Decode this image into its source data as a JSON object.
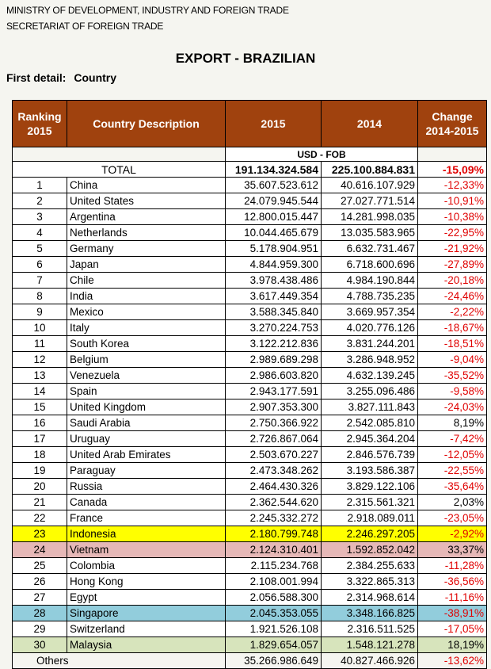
{
  "header": {
    "line1": "MINISTRY OF DEVELOPMENT, INDUSTRY AND FOREIGN TRADE",
    "line2": "SECRETARIAT OF FOREIGN TRADE",
    "title": "EXPORT - BRAZILIAN",
    "detail_label": "First detail:",
    "detail_value": "Country"
  },
  "colors": {
    "header_bg": "#a0420e",
    "negative": "#e00000",
    "highlight_yellow": "#ffff00",
    "highlight_pink": "#e6b8b7",
    "highlight_blue": "#92cddc",
    "highlight_green": "#d7e4bc"
  },
  "table": {
    "columns": {
      "ranking_line1": "Ranking",
      "ranking_line2": "2015",
      "country": "Country Description",
      "y2015": "2015",
      "y2014": "2014",
      "change_line1": "Change",
      "change_line2": "2014-2015"
    },
    "unit": "USD - FOB",
    "total": {
      "label": "TOTAL",
      "v2015": "191.134.324.584",
      "v2014": "225.100.884.831",
      "change": "-15,09%"
    },
    "rows": [
      {
        "rank": "1",
        "country": "China",
        "v2015": "35.607.523.612",
        "v2014": "40.616.107.929",
        "change": "-12,33%",
        "highlight": ""
      },
      {
        "rank": "2",
        "country": "United States",
        "v2015": "24.079.945.544",
        "v2014": "27.027.771.514",
        "change": "-10,91%",
        "highlight": ""
      },
      {
        "rank": "3",
        "country": "Argentina",
        "v2015": "12.800.015.447",
        "v2014": "14.281.998.035",
        "change": "-10,38%",
        "highlight": ""
      },
      {
        "rank": "4",
        "country": "Netherlands",
        "v2015": "10.044.465.679",
        "v2014": "13.035.583.965",
        "change": "-22,95%",
        "highlight": ""
      },
      {
        "rank": "5",
        "country": "Germany",
        "v2015": "5.178.904.951",
        "v2014": "6.632.731.467",
        "change": "-21,92%",
        "highlight": ""
      },
      {
        "rank": "6",
        "country": "Japan",
        "v2015": "4.844.959.300",
        "v2014": "6.718.600.696",
        "change": "-27,89%",
        "highlight": ""
      },
      {
        "rank": "7",
        "country": "Chile",
        "v2015": "3.978.438.486",
        "v2014": "4.984.190.844",
        "change": "-20,18%",
        "highlight": ""
      },
      {
        "rank": "8",
        "country": "India",
        "v2015": "3.617.449.354",
        "v2014": "4.788.735.235",
        "change": "-24,46%",
        "highlight": ""
      },
      {
        "rank": "9",
        "country": "Mexico",
        "v2015": "3.588.345.840",
        "v2014": "3.669.957.354",
        "change": "-2,22%",
        "highlight": ""
      },
      {
        "rank": "10",
        "country": "Italy",
        "v2015": "3.270.224.753",
        "v2014": "4.020.776.126",
        "change": "-18,67%",
        "highlight": ""
      },
      {
        "rank": "11",
        "country": "South Korea",
        "v2015": "3.122.212.836",
        "v2014": "3.831.244.201",
        "change": "-18,51%",
        "highlight": ""
      },
      {
        "rank": "12",
        "country": "Belgium",
        "v2015": "2.989.689.298",
        "v2014": "3.286.948.952",
        "change": "-9,04%",
        "highlight": ""
      },
      {
        "rank": "13",
        "country": "Venezuela",
        "v2015": "2.986.603.820",
        "v2014": "4.632.139.245",
        "change": "-35,52%",
        "highlight": ""
      },
      {
        "rank": "14",
        "country": "Spain",
        "v2015": "2.943.177.591",
        "v2014": "3.255.096.486",
        "change": "-9,58%",
        "highlight": ""
      },
      {
        "rank": "15",
        "country": "United Kingdom",
        "v2015": "2.907.353.300",
        "v2014": "3.827.111.843",
        "change": "-24,03%",
        "highlight": ""
      },
      {
        "rank": "16",
        "country": "Saudi Arabia",
        "v2015": "2.750.366.922",
        "v2014": "2.542.085.810",
        "change": "8,19%",
        "highlight": ""
      },
      {
        "rank": "17",
        "country": "Uruguay",
        "v2015": "2.726.867.064",
        "v2014": "2.945.364.204",
        "change": "-7,42%",
        "highlight": ""
      },
      {
        "rank": "18",
        "country": "United Arab Emirates",
        "v2015": "2.503.670.227",
        "v2014": "2.846.576.739",
        "change": "-12,05%",
        "highlight": ""
      },
      {
        "rank": "19",
        "country": "Paraguay",
        "v2015": "2.473.348.262",
        "v2014": "3.193.586.387",
        "change": "-22,55%",
        "highlight": ""
      },
      {
        "rank": "20",
        "country": "Russia",
        "v2015": "2.464.430.326",
        "v2014": "3.829.122.106",
        "change": "-35,64%",
        "highlight": ""
      },
      {
        "rank": "21",
        "country": "Canada",
        "v2015": "2.362.544.620",
        "v2014": "2.315.561.321",
        "change": "2,03%",
        "highlight": ""
      },
      {
        "rank": "22",
        "country": "France",
        "v2015": "2.245.332.272",
        "v2014": "2.918.089.011",
        "change": "-23,05%",
        "highlight": ""
      },
      {
        "rank": "23",
        "country": "Indonesia",
        "v2015": "2.180.799.748",
        "v2014": "2.246.297.205",
        "change": "-2,92%",
        "highlight": "yellow"
      },
      {
        "rank": "24",
        "country": "Vietnam",
        "v2015": "2.124.310.401",
        "v2014": "1.592.852.042",
        "change": "33,37%",
        "highlight": "pink"
      },
      {
        "rank": "25",
        "country": "Colombia",
        "v2015": "2.115.234.768",
        "v2014": "2.384.255.633",
        "change": "-11,28%",
        "highlight": ""
      },
      {
        "rank": "26",
        "country": "Hong Kong",
        "v2015": "2.108.001.994",
        "v2014": "3.322.865.313",
        "change": "-36,56%",
        "highlight": ""
      },
      {
        "rank": "27",
        "country": "Egypt",
        "v2015": "2.056.588.300",
        "v2014": "2.314.968.614",
        "change": "-11,16%",
        "highlight": ""
      },
      {
        "rank": "28",
        "country": "Singapore",
        "v2015": "2.045.353.055",
        "v2014": "3.348.166.825",
        "change": "-38,91%",
        "highlight": "blue"
      },
      {
        "rank": "29",
        "country": "Switzerland",
        "v2015": "1.921.526.108",
        "v2014": "2.316.511.525",
        "change": "-17,05%",
        "highlight": ""
      },
      {
        "rank": "30",
        "country": "Malaysia",
        "v2015": "1.829.654.057",
        "v2014": "1.548.121.278",
        "change": "18,19%",
        "highlight": "green"
      }
    ],
    "others": {
      "label": "Others",
      "v2015": "35.266.986.649",
      "v2014": "40.827.466.926",
      "change": "-13,62%"
    }
  }
}
